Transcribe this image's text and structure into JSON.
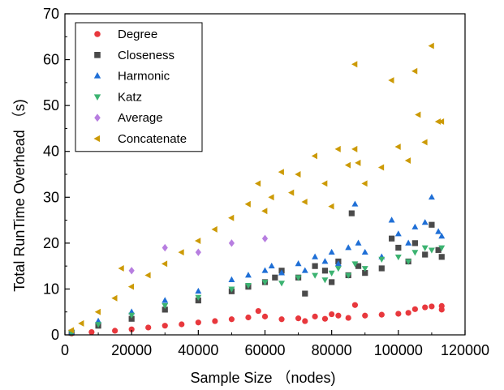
{
  "chart_data": {
    "type": "scatter",
    "title": "",
    "xlabel": "Sample Size （nodes)",
    "ylabel": "Total RunTime Overhead （s)",
    "xlim": [
      0,
      120000
    ],
    "ylim": [
      0,
      70
    ],
    "xticks": [
      0,
      20000,
      40000,
      60000,
      80000,
      100000,
      120000
    ],
    "xtick_labels": [
      "0",
      "20000",
      "40000",
      "60000",
      "80000",
      "100000",
      "120000"
    ],
    "yticks": [
      0,
      10,
      20,
      30,
      40,
      50,
      60,
      70
    ],
    "ytick_labels": [
      "0",
      "10",
      "20",
      "30",
      "40",
      "50",
      "60",
      "70"
    ],
    "grid": false,
    "legend_position": "top-left",
    "series": [
      {
        "name": "Degree",
        "marker": "circle",
        "color": "#e8383d",
        "points": [
          [
            2000,
            0.3
          ],
          [
            8000,
            0.6
          ],
          [
            15000,
            0.9
          ],
          [
            20000,
            1.2
          ],
          [
            25000,
            1.6
          ],
          [
            30000,
            2.0
          ],
          [
            35000,
            2.3
          ],
          [
            40000,
            2.7
          ],
          [
            45000,
            3.0
          ],
          [
            50000,
            3.4
          ],
          [
            55000,
            3.8
          ],
          [
            58000,
            5.2
          ],
          [
            60000,
            4.0
          ],
          [
            65000,
            3.4
          ],
          [
            70000,
            3.6
          ],
          [
            72000,
            3.0
          ],
          [
            75000,
            4.0
          ],
          [
            78000,
            3.5
          ],
          [
            80000,
            4.5
          ],
          [
            82000,
            4.2
          ],
          [
            85000,
            3.7
          ],
          [
            87000,
            6.5
          ],
          [
            90000,
            4.2
          ],
          [
            95000,
            4.4
          ],
          [
            100000,
            4.6
          ],
          [
            103000,
            4.8
          ],
          [
            105000,
            5.6
          ],
          [
            108000,
            6.0
          ],
          [
            110000,
            6.2
          ],
          [
            113000,
            5.5
          ],
          [
            113000,
            6.3
          ]
        ]
      },
      {
        "name": "Closeness",
        "marker": "square",
        "color": "#4a4a4a",
        "points": [
          [
            2000,
            0.5
          ],
          [
            10000,
            2.0
          ],
          [
            20000,
            3.5
          ],
          [
            30000,
            5.5
          ],
          [
            40000,
            7.5
          ],
          [
            50000,
            9.5
          ],
          [
            55000,
            10.5
          ],
          [
            60000,
            11.5
          ],
          [
            63000,
            12.5
          ],
          [
            65000,
            14.0
          ],
          [
            70000,
            12.5
          ],
          [
            72000,
            9.0
          ],
          [
            75000,
            15.0
          ],
          [
            78000,
            14.0
          ],
          [
            80000,
            11.5
          ],
          [
            82000,
            16.0
          ],
          [
            85000,
            13.0
          ],
          [
            86000,
            26.5
          ],
          [
            88000,
            15.0
          ],
          [
            90000,
            13.5
          ],
          [
            95000,
            14.5
          ],
          [
            98000,
            21.0
          ],
          [
            100000,
            19.0
          ],
          [
            103000,
            16.0
          ],
          [
            105000,
            20.0
          ],
          [
            108000,
            17.5
          ],
          [
            110000,
            24.0
          ],
          [
            112000,
            18.5
          ],
          [
            113000,
            17.0
          ]
        ]
      },
      {
        "name": "Harmonic",
        "marker": "triangle-up",
        "color": "#1f6fd6",
        "points": [
          [
            2000,
            0.5
          ],
          [
            10000,
            3.0
          ],
          [
            20000,
            5.0
          ],
          [
            30000,
            7.5
          ],
          [
            40000,
            9.5
          ],
          [
            50000,
            12.0
          ],
          [
            55000,
            13.0
          ],
          [
            60000,
            14.0
          ],
          [
            62000,
            15.0
          ],
          [
            65000,
            13.5
          ],
          [
            70000,
            15.5
          ],
          [
            72000,
            14.0
          ],
          [
            75000,
            17.0
          ],
          [
            78000,
            16.0
          ],
          [
            80000,
            18.0
          ],
          [
            82000,
            15.5
          ],
          [
            85000,
            19.0
          ],
          [
            87000,
            28.5
          ],
          [
            88000,
            20.0
          ],
          [
            90000,
            18.0
          ],
          [
            95000,
            17.0
          ],
          [
            98000,
            25.0
          ],
          [
            100000,
            22.0
          ],
          [
            103000,
            20.0
          ],
          [
            105000,
            23.5
          ],
          [
            108000,
            24.5
          ],
          [
            110000,
            30.0
          ],
          [
            112000,
            22.5
          ],
          [
            113000,
            21.5
          ]
        ]
      },
      {
        "name": "Katz",
        "marker": "triangle-down",
        "color": "#3cb371",
        "points": [
          [
            2000,
            0.4
          ],
          [
            10000,
            2.3
          ],
          [
            20000,
            4.3
          ],
          [
            30000,
            6.4
          ],
          [
            40000,
            8.2
          ],
          [
            50000,
            10.0
          ],
          [
            55000,
            10.8
          ],
          [
            60000,
            11.5
          ],
          [
            65000,
            11.3
          ],
          [
            70000,
            12.5
          ],
          [
            75000,
            13.0
          ],
          [
            78000,
            12.0
          ],
          [
            80000,
            13.5
          ],
          [
            82000,
            14.5
          ],
          [
            85000,
            13.0
          ],
          [
            87000,
            15.5
          ],
          [
            90000,
            14.5
          ],
          [
            95000,
            16.5
          ],
          [
            100000,
            17.0
          ],
          [
            103000,
            16.0
          ],
          [
            105000,
            18.0
          ],
          [
            108000,
            19.0
          ],
          [
            110000,
            18.5
          ],
          [
            113000,
            19.0
          ]
        ]
      },
      {
        "name": "Average",
        "marker": "diamond",
        "color": "#b77ee0",
        "points": [
          [
            20000,
            14.0
          ],
          [
            30000,
            19.0
          ],
          [
            40000,
            18.0
          ],
          [
            50000,
            20.0
          ],
          [
            60000,
            21.0
          ]
        ]
      },
      {
        "name": "Concatenate",
        "marker": "triangle-left",
        "color": "#cc9a06",
        "points": [
          [
            2000,
            1.0
          ],
          [
            5000,
            2.5
          ],
          [
            10000,
            5.0
          ],
          [
            15000,
            8.0
          ],
          [
            17000,
            14.5
          ],
          [
            20000,
            10.5
          ],
          [
            25000,
            13.0
          ],
          [
            30000,
            15.5
          ],
          [
            35000,
            18.0
          ],
          [
            40000,
            20.5
          ],
          [
            45000,
            23.0
          ],
          [
            50000,
            25.5
          ],
          [
            55000,
            28.5
          ],
          [
            58000,
            33.0
          ],
          [
            60000,
            27.0
          ],
          [
            62000,
            30.0
          ],
          [
            65000,
            35.5
          ],
          [
            68000,
            31.0
          ],
          [
            70000,
            35.0
          ],
          [
            72000,
            29.0
          ],
          [
            75000,
            39.0
          ],
          [
            78000,
            33.0
          ],
          [
            80000,
            28.0
          ],
          [
            82000,
            40.5
          ],
          [
            85000,
            37.0
          ],
          [
            87000,
            40.5
          ],
          [
            87000,
            59.0
          ],
          [
            88000,
            37.5
          ],
          [
            90000,
            33.0
          ],
          [
            95000,
            36.5
          ],
          [
            98000,
            55.5
          ],
          [
            100000,
            41.0
          ],
          [
            103000,
            38.0
          ],
          [
            105000,
            57.5
          ],
          [
            106000,
            48.0
          ],
          [
            108000,
            42.0
          ],
          [
            110000,
            63.0
          ],
          [
            112000,
            46.5
          ],
          [
            113000,
            46.5
          ]
        ]
      }
    ]
  }
}
